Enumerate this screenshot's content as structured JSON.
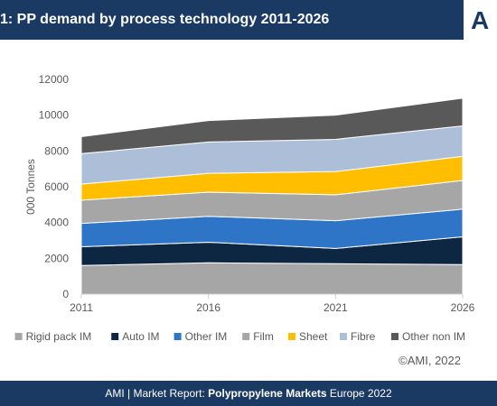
{
  "header": {
    "title": "1: PP demand by process technology 2011-2026",
    "logo_text": "A"
  },
  "colors": {
    "header_bg": "#1b3a63"
  },
  "chart_data": {
    "type": "area",
    "stacked": true,
    "x": [
      "2011",
      "2016",
      "2021",
      "2026"
    ],
    "ylabel": "000 Tonnes",
    "ylim": [
      0,
      12000
    ],
    "yticks": [
      0,
      2000,
      4000,
      6000,
      8000,
      10000,
      12000
    ],
    "grid": false,
    "legend_position": "bottom",
    "series": [
      {
        "name": "Rigid pack IM",
        "color": "#a6a6a6",
        "values": [
          1600,
          1750,
          1700,
          1650
        ]
      },
      {
        "name": "Auto IM",
        "color": "#0d2743",
        "values": [
          1050,
          1150,
          850,
          1550
        ]
      },
      {
        "name": "Other IM",
        "color": "#2e75c8",
        "values": [
          1300,
          1450,
          1550,
          1550
        ]
      },
      {
        "name": "Film",
        "color": "#a6a6a6",
        "values": [
          1300,
          1350,
          1450,
          1600
        ]
      },
      {
        "name": "Sheet",
        "color": "#ffbf00",
        "values": [
          900,
          1050,
          1300,
          1350
        ]
      },
      {
        "name": "Fibre",
        "color": "#adbfd8",
        "values": [
          1700,
          1750,
          1800,
          1700
        ]
      },
      {
        "name": "Other non IM",
        "color": "#595959",
        "values": [
          950,
          1200,
          1350,
          1550
        ]
      }
    ]
  },
  "copyright": "©AMI, 2022",
  "footer": {
    "prefix": "AMI | Market Report: ",
    "bold": "Polypropylene Markets",
    "suffix": " Europe 2022"
  }
}
